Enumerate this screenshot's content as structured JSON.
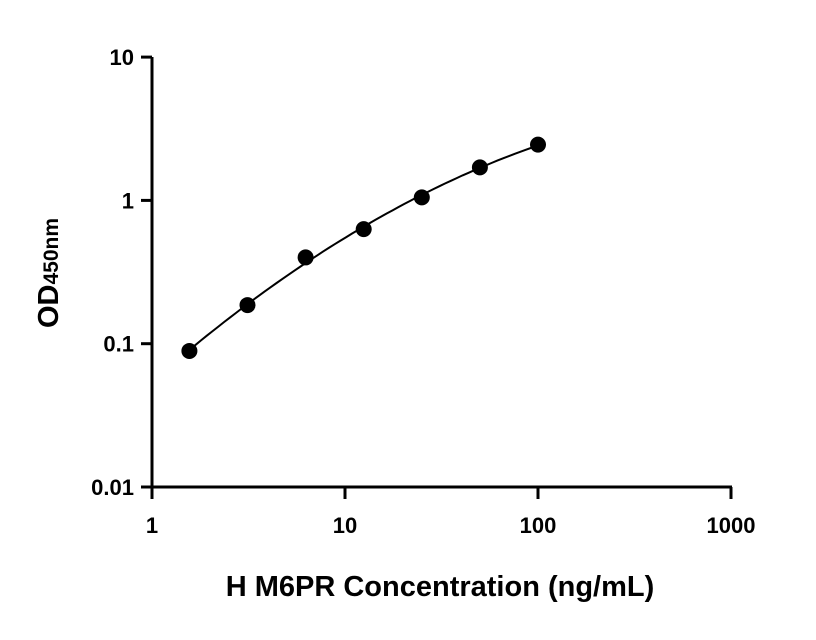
{
  "chart_data": {
    "type": "scatter",
    "title": "",
    "xlabel": "H M6PR Concentration (ng/mL)",
    "ylabel_main": "OD",
    "ylabel_sub": "450nm",
    "x_scale": "log",
    "y_scale": "log",
    "xlim": [
      1,
      1000
    ],
    "ylim": [
      0.01,
      10
    ],
    "x_ticks": [
      "1",
      "10",
      "100",
      "1000"
    ],
    "y_ticks": [
      "0.01",
      "0.1",
      "1",
      "10"
    ],
    "grid": false,
    "fit_curve": true,
    "series": [
      {
        "x": [
          1.5625,
          3.125,
          6.25,
          12.5,
          25,
          50,
          100
        ],
        "y": [
          0.089,
          0.186,
          0.4,
          0.63,
          1.05,
          1.7,
          2.45
        ]
      }
    ]
  }
}
